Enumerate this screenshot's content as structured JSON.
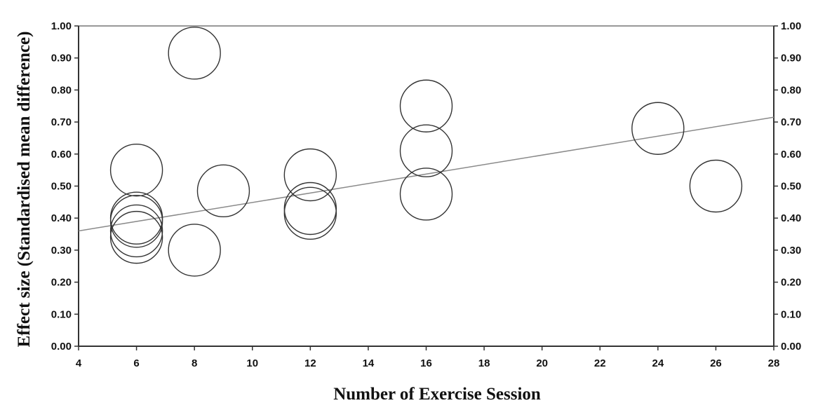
{
  "chart_data": {
    "type": "scatter",
    "title": "",
    "xlabel": "Number of Exercise Session",
    "ylabel": "Effect size (Standardised mean difference)",
    "xlim": [
      4,
      28
    ],
    "ylim": [
      0,
      1
    ],
    "xticks": [
      "4",
      "6",
      "8",
      "10",
      "12",
      "14",
      "16",
      "18",
      "20",
      "22",
      "24",
      "26",
      "28"
    ],
    "yticks": [
      "0.00",
      "0.10",
      "0.20",
      "0.30",
      "0.40",
      "0.50",
      "0.60",
      "0.70",
      "0.80",
      "0.90",
      "1.00"
    ],
    "grid": false,
    "marker": "open-circle",
    "points": [
      {
        "x": 6,
        "y": 0.55
      },
      {
        "x": 6,
        "y": 0.4
      },
      {
        "x": 6,
        "y": 0.39
      },
      {
        "x": 6,
        "y": 0.36
      },
      {
        "x": 6,
        "y": 0.34
      },
      {
        "x": 8,
        "y": 0.915
      },
      {
        "x": 8,
        "y": 0.3
      },
      {
        "x": 9,
        "y": 0.485
      },
      {
        "x": 12,
        "y": 0.535
      },
      {
        "x": 12,
        "y": 0.43
      },
      {
        "x": 12,
        "y": 0.415
      },
      {
        "x": 16,
        "y": 0.75
      },
      {
        "x": 16,
        "y": 0.61
      },
      {
        "x": 16,
        "y": 0.475
      },
      {
        "x": 24,
        "y": 0.68
      },
      {
        "x": 26,
        "y": 0.5
      }
    ],
    "trendline": {
      "x": [
        4,
        28
      ],
      "y": [
        0.36,
        0.715
      ]
    }
  }
}
